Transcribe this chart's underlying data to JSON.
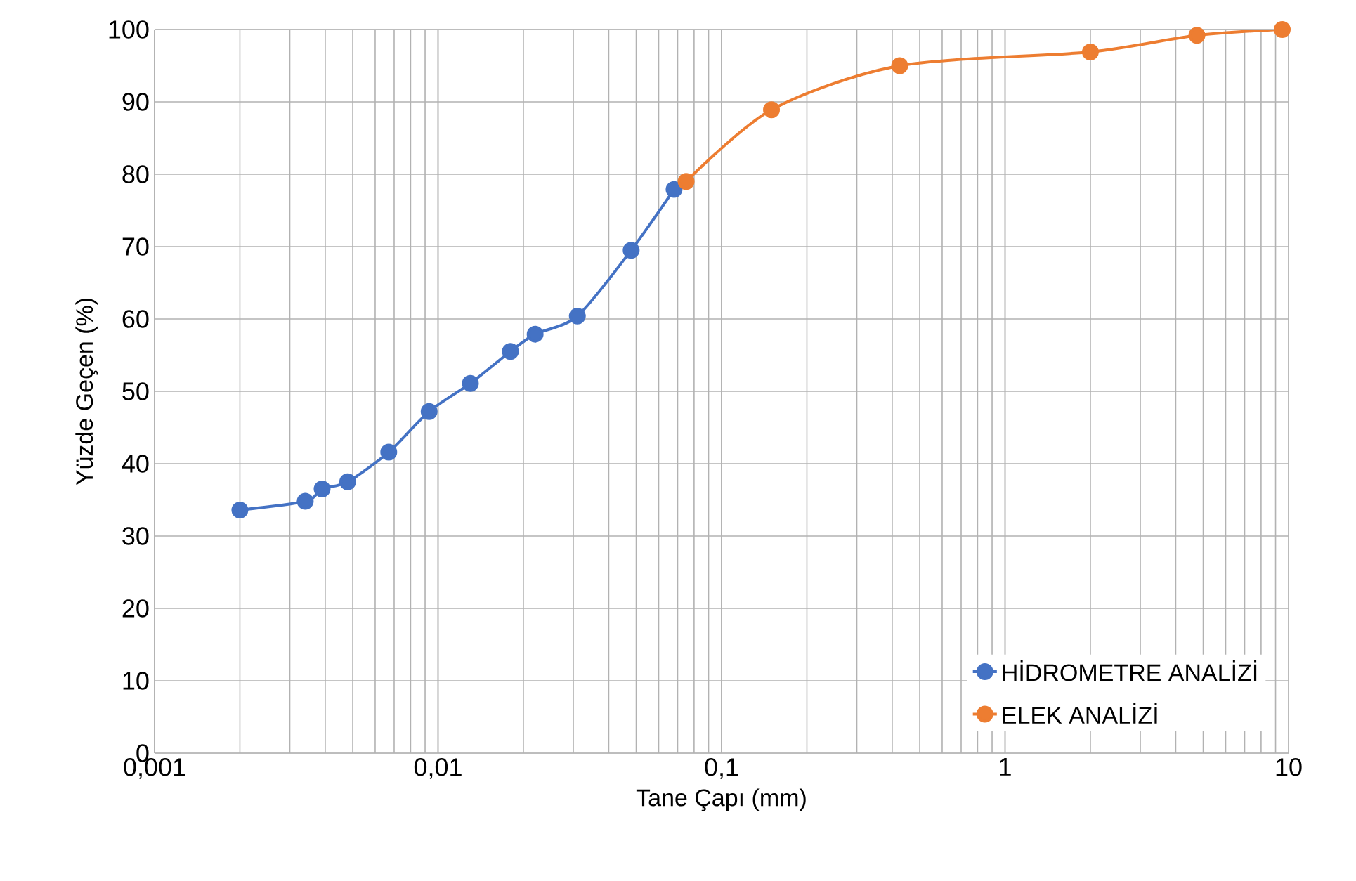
{
  "chart_data": {
    "type": "line",
    "xlabel": "Tane Çapı (mm)",
    "ylabel": "Yüzde Geçen (%)",
    "log": "x",
    "xlim": [
      0.001,
      10
    ],
    "ylim": [
      0,
      100
    ],
    "xticks": [
      {
        "value": 0.001,
        "label": "0,001"
      },
      {
        "value": 0.01,
        "label": "0,01"
      },
      {
        "value": 0.1,
        "label": "0,1"
      },
      1,
      10
    ],
    "yticks": [
      0,
      10,
      20,
      30,
      40,
      50,
      60,
      70,
      80,
      90,
      100
    ],
    "grid": true,
    "legend": "bottom right",
    "marker": "circle",
    "line_style": "solid",
    "series": [
      {
        "name": "HİDROMETRE ANALİZİ",
        "color": "#4472c4",
        "x": [
          0.002,
          0.0034,
          0.0039,
          0.0048,
          0.0067,
          0.0093,
          0.013,
          0.018,
          0.022,
          0.031,
          0.048,
          0.068
        ],
        "values": [
          33.6,
          34.8,
          36.5,
          37.5,
          41.6,
          47.2,
          51.1,
          55.5,
          57.9,
          60.4,
          69.5,
          77.9
        ]
      },
      {
        "name": "ELEK ANALİZİ",
        "color": "#ed7d31",
        "x": [
          0.075,
          0.15,
          0.425,
          2,
          4.75,
          9.5
        ],
        "values": [
          79.0,
          88.9,
          95.0,
          96.9,
          99.2,
          100
        ]
      }
    ]
  }
}
